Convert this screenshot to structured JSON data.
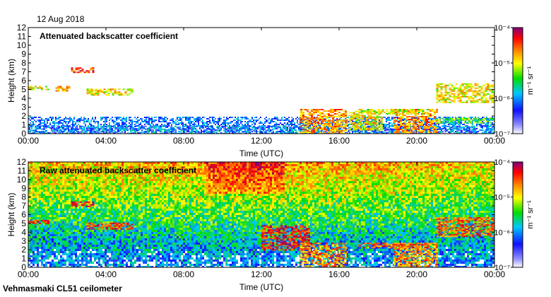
{
  "date": "12 Aug 2018",
  "instrument": "Vehmasmaki CL51 ceilometer",
  "chart_data": [
    {
      "type": "heatmap",
      "title": "Attenuated backscatter coefficient",
      "xlabel": "Time (UTC)",
      "ylabel": "Height (km)",
      "xlim": [
        0,
        24
      ],
      "ylim": [
        0,
        12
      ],
      "x_ticks": [
        "00:00",
        "04:00",
        "08:00",
        "12:00",
        "16:00",
        "20:00",
        "00:00"
      ],
      "y_ticks": [
        "0",
        "1",
        "2",
        "3",
        "4",
        "5",
        "6",
        "7",
        "8",
        "9",
        "10",
        "11",
        "12"
      ],
      "colorbar": {
        "scale": "log",
        "range": [
          1e-07,
          0.0001
        ],
        "label": "m⁻¹ sr⁻¹",
        "tick_labels": [
          "10⁻⁷",
          "10⁻⁶",
          "10⁻⁵",
          "10⁻⁴"
        ],
        "colormap": [
          "#ffffff",
          "#1010ff",
          "#00c8ff",
          "#00dd00",
          "#ffff00",
          "#ff8800",
          "#ff0000",
          "#800080"
        ]
      },
      "features": [
        {
          "kind": "boundary-layer",
          "t_start": 0,
          "t_end": 24,
          "h_bottom": 0,
          "h_top": 0.9,
          "level": 0.22
        },
        {
          "kind": "cloud-layer",
          "t_start": 0,
          "t_end": 1.0,
          "h_bottom": 5.0,
          "h_top": 5.4,
          "level": 0.6
        },
        {
          "kind": "cloud-layer",
          "t_start": 2.2,
          "t_end": 3.4,
          "h_bottom": 7.0,
          "h_top": 7.5,
          "level": 0.8
        },
        {
          "kind": "cloud-layer",
          "t_start": 1.4,
          "t_end": 2.1,
          "h_bottom": 4.9,
          "h_top": 5.4,
          "level": 0.65
        },
        {
          "kind": "cloud-layer",
          "t_start": 3.0,
          "t_end": 5.3,
          "h_bottom": 4.3,
          "h_top": 5.1,
          "level": 0.6
        },
        {
          "kind": "cloud-patch",
          "t_start": 14.0,
          "t_end": 16.4,
          "h_bottom": 0,
          "h_top": 2.8,
          "level": 0.7
        },
        {
          "kind": "cloud-patch",
          "t_start": 16.5,
          "t_end": 18.2,
          "h_bottom": 0.5,
          "h_top": 2.6,
          "level": 0.6
        },
        {
          "kind": "cloud-patch",
          "t_start": 18.8,
          "t_end": 21.0,
          "h_bottom": 0,
          "h_top": 2.8,
          "level": 0.7
        },
        {
          "kind": "cloud-layer",
          "t_start": 17.0,
          "t_end": 20.5,
          "h_bottom": 2.3,
          "h_top": 2.8,
          "level": 0.55
        },
        {
          "kind": "cloud-layer",
          "t_start": 21.0,
          "t_end": 24.0,
          "h_bottom": 3.5,
          "h_top": 5.7,
          "level": 0.6
        },
        {
          "kind": "cloud-layer",
          "t_start": 21.0,
          "t_end": 24.0,
          "h_bottom": 1.3,
          "h_top": 1.8,
          "level": 0.45
        }
      ]
    },
    {
      "type": "heatmap",
      "title": "Raw attenuated backscatter coefficient",
      "xlabel": "Time (UTC)",
      "ylabel": "Height (km)",
      "xlim": [
        0,
        24
      ],
      "ylim": [
        0,
        12
      ],
      "x_ticks": [
        "00:00",
        "04:00",
        "08:00",
        "12:00",
        "16:00",
        "20:00",
        "00:00"
      ],
      "y_ticks": [
        "0",
        "1",
        "2",
        "3",
        "4",
        "5",
        "6",
        "7",
        "8",
        "9",
        "10",
        "11",
        "12"
      ],
      "colorbar": {
        "scale": "log",
        "range": [
          1e-07,
          0.0001
        ],
        "label": "m⁻¹ sr⁻¹",
        "tick_labels": [
          "10⁻⁷",
          "10⁻⁶",
          "10⁻⁵",
          "10⁻⁴"
        ],
        "colormap": [
          "#ffffff",
          "#1010ff",
          "#00c8ff",
          "#00dd00",
          "#ffff00",
          "#ff8800",
          "#ff0000",
          "#800080"
        ]
      },
      "features": [
        {
          "kind": "cloud-layer",
          "t_start": 0,
          "t_end": 1.0,
          "h_bottom": 5.0,
          "h_top": 5.4,
          "level": 0.8
        },
        {
          "kind": "cloud-layer",
          "t_start": 2.2,
          "t_end": 3.4,
          "h_bottom": 7.0,
          "h_top": 7.5,
          "level": 0.85
        },
        {
          "kind": "cloud-layer",
          "t_start": 3.0,
          "t_end": 5.3,
          "h_bottom": 4.3,
          "h_top": 5.1,
          "level": 0.8
        },
        {
          "kind": "cloud-layer",
          "t_start": 12.0,
          "t_end": 14.5,
          "h_bottom": 2.0,
          "h_top": 4.8,
          "level": 0.85
        },
        {
          "kind": "cloud-patch",
          "t_start": 14.0,
          "t_end": 16.4,
          "h_bottom": 0,
          "h_top": 2.8,
          "level": 0.7
        },
        {
          "kind": "cloud-patch",
          "t_start": 18.8,
          "t_end": 21.0,
          "h_bottom": 0,
          "h_top": 2.8,
          "level": 0.7
        },
        {
          "kind": "cloud-layer",
          "t_start": 17.0,
          "t_end": 20.5,
          "h_bottom": 2.3,
          "h_top": 2.8,
          "level": 0.75
        },
        {
          "kind": "cloud-layer",
          "t_start": 21.0,
          "t_end": 24.0,
          "h_bottom": 3.5,
          "h_top": 5.7,
          "level": 0.75
        }
      ]
    }
  ]
}
